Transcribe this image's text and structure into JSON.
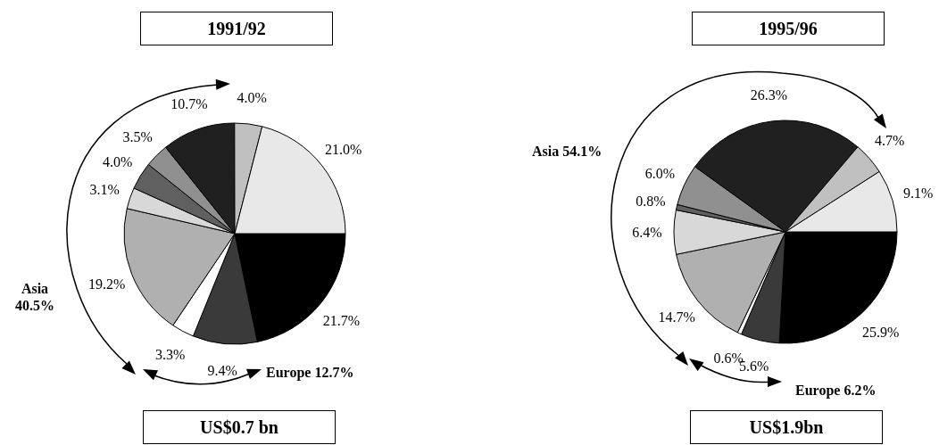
{
  "chart_data": [
    {
      "type": "pie",
      "title": "1991/92",
      "categories": [
        null,
        null,
        null,
        null,
        null,
        null,
        null,
        null,
        null,
        null
      ],
      "values": [
        21.7,
        9.4,
        3.3,
        19.2,
        3.1,
        4.0,
        3.5,
        10.7,
        4.0,
        21.0
      ],
      "colors": [
        "#000000",
        "#3a3a3a",
        "#ffffff",
        "#b0b0b0",
        "#d8d8d8",
        "#606060",
        "#909090",
        "#202020",
        "#c0c0c0",
        "#e8e8e8"
      ],
      "value_labels": [
        "21.7%",
        "9.4%",
        "3.3%",
        "19.2%",
        "3.1%",
        "4.0%",
        "3.5%",
        "10.7%",
        "4.0%",
        "21.0%"
      ],
      "annotations": [
        "Asia 40.5%",
        "Europe 12.7%",
        "US$0.7 bn"
      ]
    },
    {
      "type": "pie",
      "title": "1995/96",
      "categories": [
        null,
        null,
        null,
        null,
        null,
        null,
        null,
        null,
        null,
        null
      ],
      "values": [
        25.9,
        5.6,
        0.6,
        14.7,
        6.4,
        0.8,
        6.0,
        26.3,
        4.7,
        9.1
      ],
      "colors": [
        "#000000",
        "#3a3a3a",
        "#ffffff",
        "#b0b0b0",
        "#d8d8d8",
        "#606060",
        "#909090",
        "#202020",
        "#c0c0c0",
        "#e8e8e8"
      ],
      "value_labels": [
        "25.9%",
        "5.6%",
        "0.6%",
        "14.7%",
        "6.4%",
        "0.8%",
        "6.0%",
        "26.3%",
        "4.7%",
        "9.1%"
      ],
      "annotations": [
        "Asia 54.1%",
        "Europe 6.2%",
        "US$1.9bn"
      ]
    }
  ]
}
